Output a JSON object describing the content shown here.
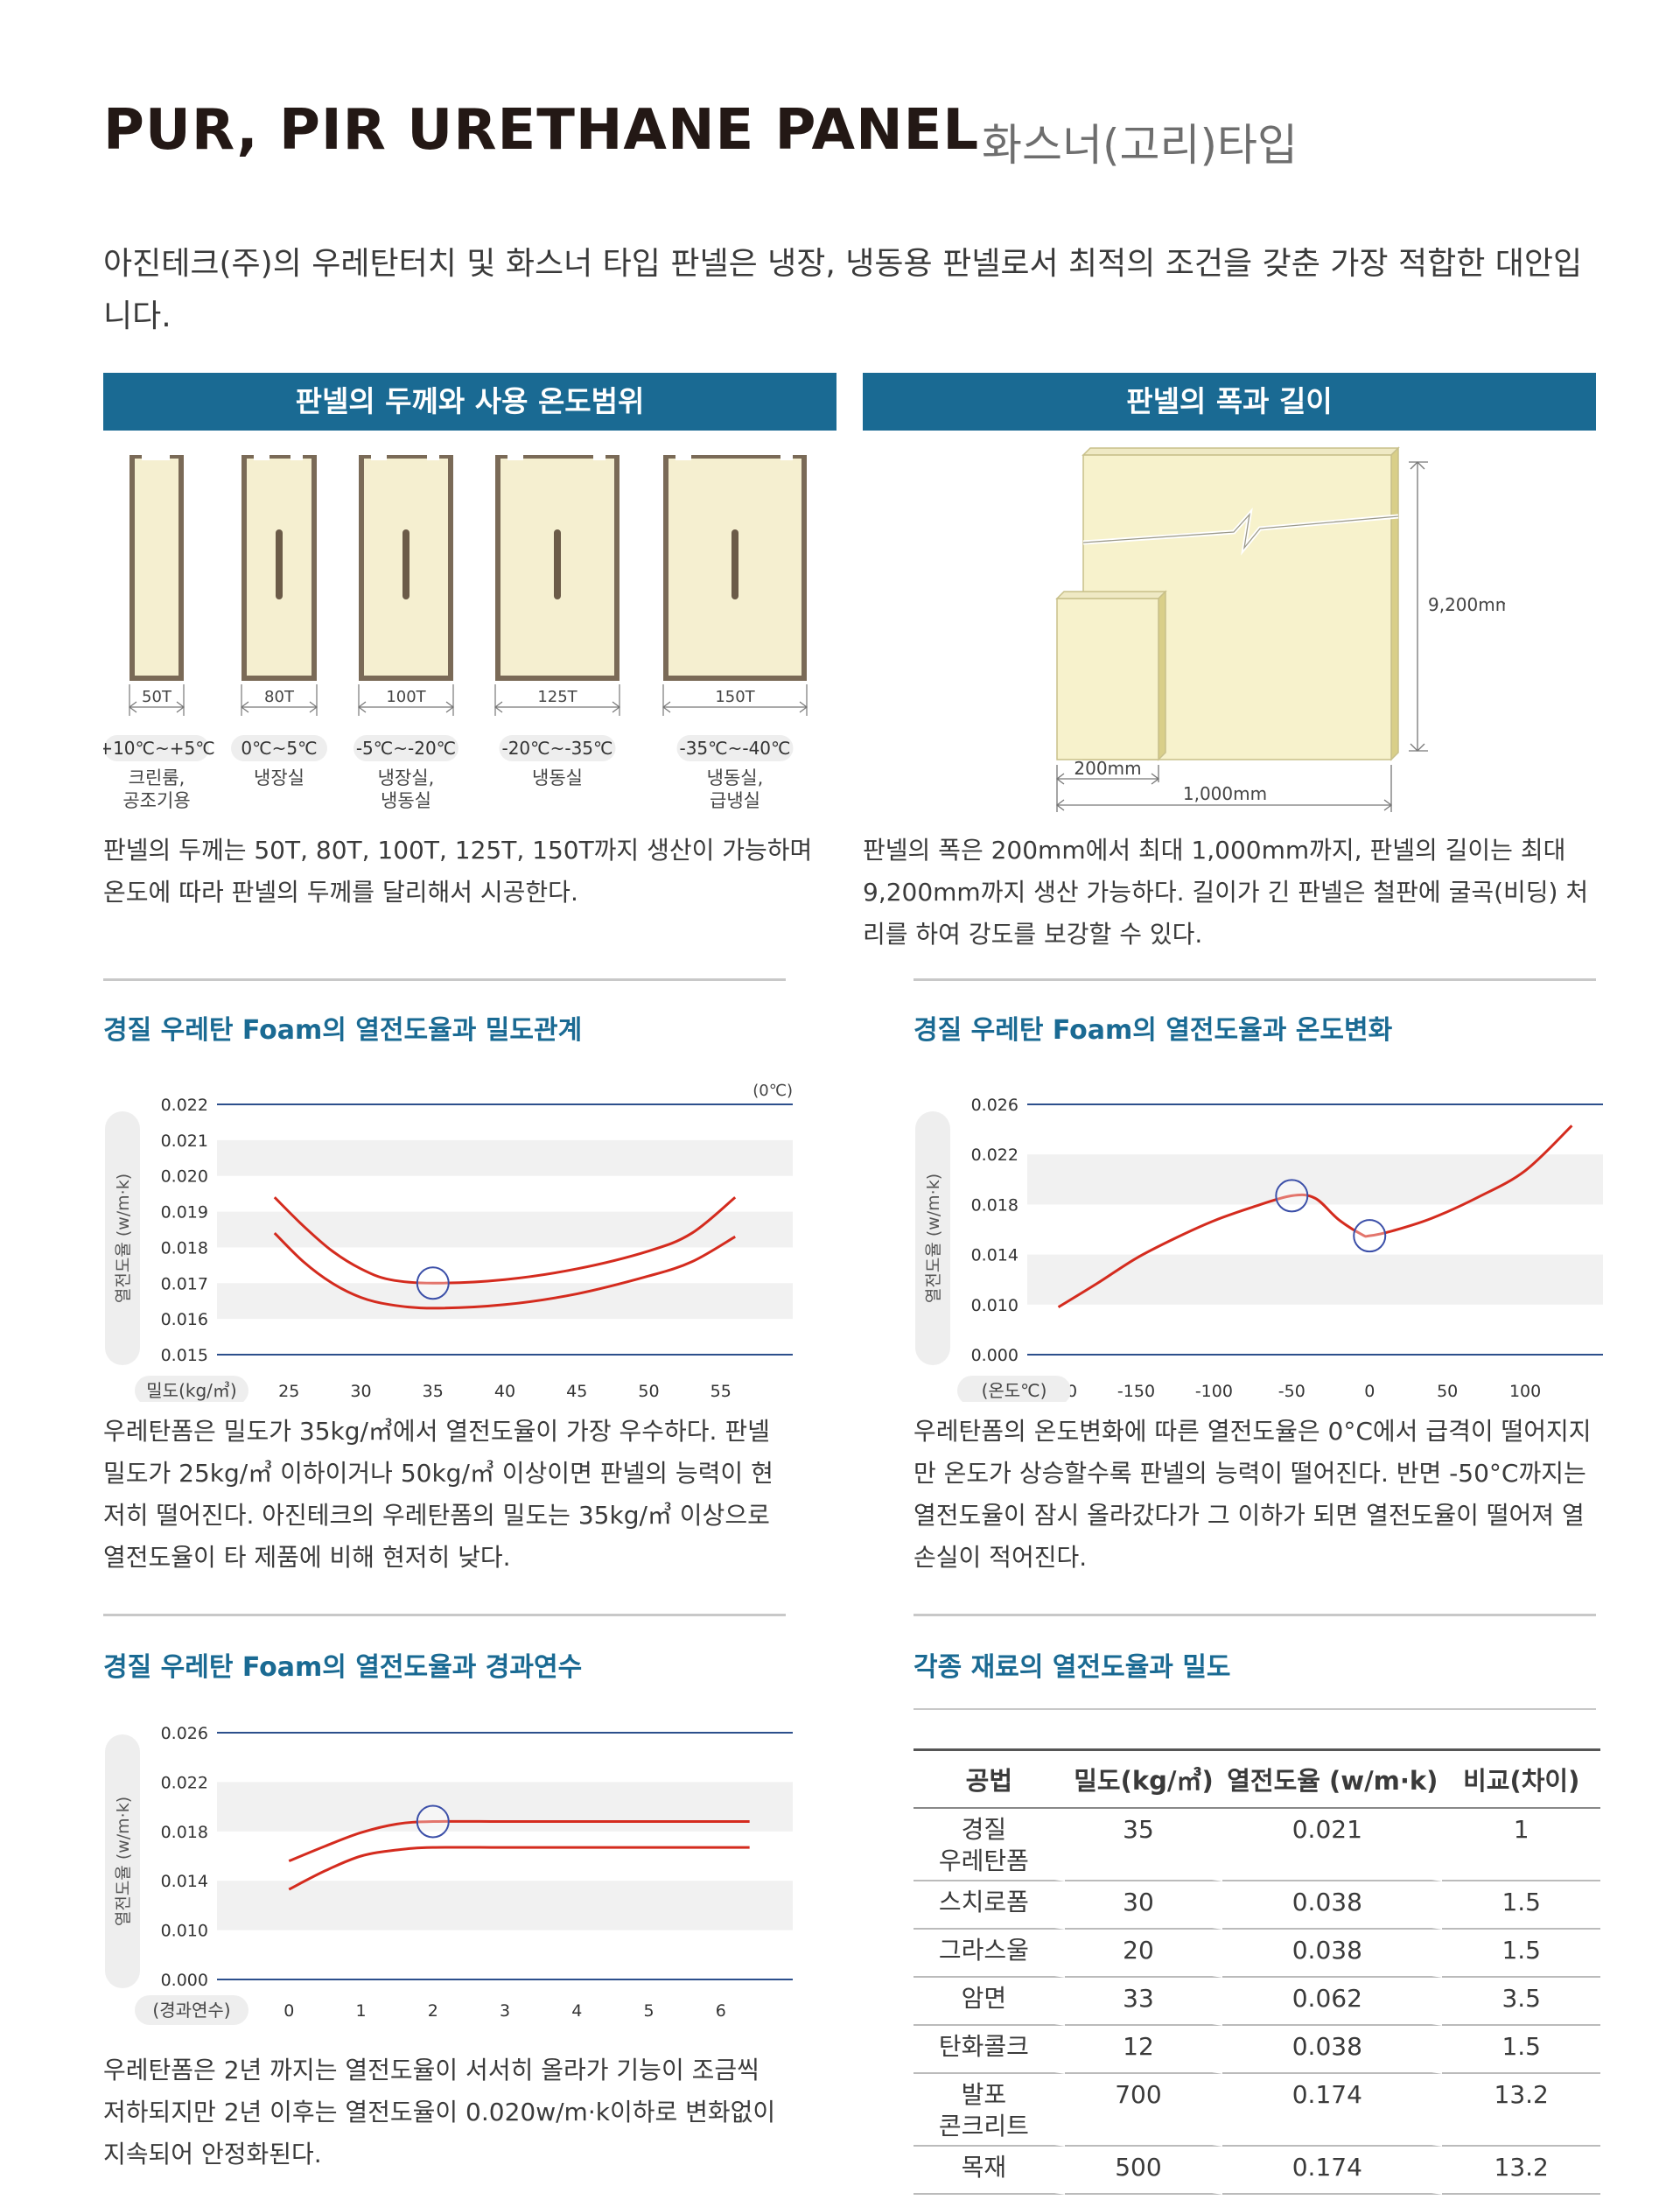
{
  "header": {
    "title": "PUR, PIR URETHANE PANEL",
    "subtitle": "화스너(고리)타입"
  },
  "intro": "아진테크(주)의 우레탄터치 및 화스너 타입 판넬은 냉장, 냉동용 판넬로서 최적의 조건을 갖춘 가장 적합한 대안입니다.",
  "thickness_section": {
    "banner": "판넬의 두께와 사용 온도범위",
    "panels": [
      {
        "thickness": "50T",
        "range": "+10℃~+5℃",
        "use": "크린룸,\n공조기용"
      },
      {
        "thickness": "80T",
        "range": "0℃~5℃",
        "use": "냉장실"
      },
      {
        "thickness": "100T",
        "range": "-5℃~-20℃",
        "use": "냉장실,\n냉동실"
      },
      {
        "thickness": "125T",
        "range": "-20℃~-35℃",
        "use": "냉동실"
      },
      {
        "thickness": "150T",
        "range": "-35℃~-40℃",
        "use": "냉동실,\n급냉실"
      }
    ],
    "paragraph": "판넬의 두께는 50T, 80T, 100T, 125T, 150T까지 생산이 가능하며 온도에 따라 판넬의 두께를 달리해서 시공한다."
  },
  "size_section": {
    "banner": "판넬의 폭과 길이",
    "height_label": "9,200mm",
    "width_label": "200mm",
    "max_width_label": "1,000mm",
    "paragraph": "판넬의 폭은 200mm에서 최대 1,000mm까지, 판넬의 길이는 최대 9,200mm까지 생산 가능하다. 길이가 긴 판넬은 철판에 굴곡(비딩) 처리를 하여 강도를 보강할 수 있다."
  },
  "density_section": {
    "title": "경질 우레탄 Foam의 열전도율과 밀도관계",
    "paragraph": "우레탄폼은 밀도가 35kg/㎥에서 열전도율이 가장 우수하다. 판넬 밀도가 25kg/㎥ 이하이거나 50kg/㎥ 이상이면 판넬의 능력이 현저히 떨어진다. 아진테크의 우레탄폼의 밀도는 35kg/㎥ 이상으로 열전도율이 타 제품에 비해 현저히 낮다."
  },
  "temperature_section": {
    "title": "경질 우레탄 Foam의 열전도율과 온도변화",
    "paragraph": "우레탄폼의 온도변화에 따른 열전도율은 0°C에서 급격이 떨어지지만 온도가 상승할수록 판넬의 능력이 떨어진다. 반면 -50°C까지는 열전도율이 잠시 올라갔다가 그 이하가 되면 열전도율이 떨어져 열손실이 적어진다."
  },
  "years_section": {
    "title": "경질 우레탄 Foam의 열전도율과 경과연수",
    "paragraph": "우레탄폼은 2년 까지는 열전도율이 서서히 올라가 기능이 조금씩 저하되지만 2년 이후는 열전도율이 0.020w/m·k이하로 변화없이 지속되어 안정화된다."
  },
  "materials_section": {
    "title": "각종 재료의 열전도율과 밀도",
    "headers": [
      "공법",
      "밀도(kg/㎥)",
      "열전도율 (w/m·k)",
      "비교(차이)"
    ],
    "rows": [
      [
        "경질\n우레탄폼",
        "35",
        "0.021",
        "1"
      ],
      [
        "스치로폼",
        "30",
        "0.038",
        "1.5"
      ],
      [
        "그라스울",
        "20",
        "0.038",
        "1.5"
      ],
      [
        "암면",
        "33",
        "0.062",
        "3.5"
      ],
      [
        "탄화콜크",
        "12",
        "0.038",
        "1.5"
      ],
      [
        "발포\n콘크리트",
        "700",
        "0.174",
        "13.2"
      ],
      [
        "목재",
        "500",
        "0.174",
        "13.2"
      ]
    ]
  },
  "chart_data": [
    {
      "type": "line",
      "title": "경질 우레탄 Foam의 열전도율과 밀도관계",
      "xlabel": "밀도(kg/㎥)",
      "ylabel": "열전도율 (w/m·k)",
      "unit_note": "(0℃)",
      "x_ticks": [
        25,
        30,
        35,
        40,
        45,
        50,
        55
      ],
      "y_ticks": [
        0.015,
        0.016,
        0.017,
        0.018,
        0.019,
        0.02,
        0.021,
        0.022
      ],
      "xlim": [
        20,
        60
      ],
      "ylim": [
        0.015,
        0.022
      ],
      "series": [
        {
          "x": [
            24,
            26,
            28,
            30,
            32,
            35,
            40,
            45,
            50,
            53,
            56
          ],
          "y": [
            0.0194,
            0.0186,
            0.0179,
            0.0174,
            0.0171,
            0.017,
            0.0171,
            0.0174,
            0.0179,
            0.0184,
            0.0194
          ]
        },
        {
          "x": [
            24,
            26,
            28,
            30,
            32,
            35,
            40,
            45,
            50,
            53,
            56
          ],
          "y": [
            0.0184,
            0.0176,
            0.017,
            0.0166,
            0.0164,
            0.0163,
            0.0164,
            0.0167,
            0.0172,
            0.0176,
            0.0183
          ]
        }
      ],
      "highlight": {
        "x": 35,
        "y": 0.017
      },
      "line_color": "#d42b1e",
      "highlight_color": "#3b4fa8"
    },
    {
      "type": "line",
      "title": "경질 우레탄 Foam의 열전도율과 온도변화",
      "xlabel": "(온도℃)",
      "ylabel": "열전도율 (w/m·k)",
      "x_ticks": [
        -200,
        -150,
        -100,
        -50,
        0,
        50,
        100
      ],
      "y_ticks": [
        0.0,
        0.01,
        0.014,
        0.018,
        0.022,
        0.026
      ],
      "xlim": [
        -220,
        150
      ],
      "ylim": [
        0.0,
        0.026
      ],
      "series": [
        {
          "x": [
            -200,
            -175,
            -150,
            -125,
            -100,
            -75,
            -50,
            -35,
            -20,
            -5,
            0,
            15,
            40,
            70,
            100,
            130
          ],
          "y": [
            0.0095,
            0.0117,
            0.0137,
            0.0153,
            0.0167,
            0.0178,
            0.0187,
            0.0185,
            0.0168,
            0.0156,
            0.0155,
            0.0159,
            0.0169,
            0.0186,
            0.0207,
            0.0243
          ]
        }
      ],
      "highlights": [
        {
          "x": -50,
          "y": 0.0187
        },
        {
          "x": 0,
          "y": 0.0155
        }
      ],
      "line_color": "#d42b1e",
      "highlight_color": "#3b4fa8"
    },
    {
      "type": "line",
      "title": "경질 우레탄 Foam의 열전도율과 경과연수",
      "xlabel": "(경과연수)",
      "ylabel": "열전도율 (w/m·k)",
      "x_ticks": [
        0,
        1,
        2,
        3,
        4,
        5,
        6
      ],
      "y_ticks": [
        0.0,
        0.01,
        0.014,
        0.018,
        0.022,
        0.026
      ],
      "xlim": [
        -1,
        7
      ],
      "ylim": [
        0.0,
        0.026
      ],
      "series": [
        {
          "x": [
            0,
            0.5,
            1,
            1.5,
            2,
            3,
            4,
            5,
            6.4
          ],
          "y": [
            0.0156,
            0.0168,
            0.0179,
            0.0186,
            0.0188,
            0.0188,
            0.0188,
            0.0188,
            0.0188
          ]
        },
        {
          "x": [
            0,
            0.5,
            1,
            1.5,
            2,
            3,
            4,
            5,
            6.4
          ],
          "y": [
            0.0133,
            0.0148,
            0.016,
            0.0165,
            0.0167,
            0.0167,
            0.0167,
            0.0167,
            0.0167
          ]
        }
      ],
      "highlight": {
        "x": 2,
        "y": 0.0188
      },
      "line_color": "#d42b1e",
      "highlight_color": "#3b4fa8"
    }
  ]
}
